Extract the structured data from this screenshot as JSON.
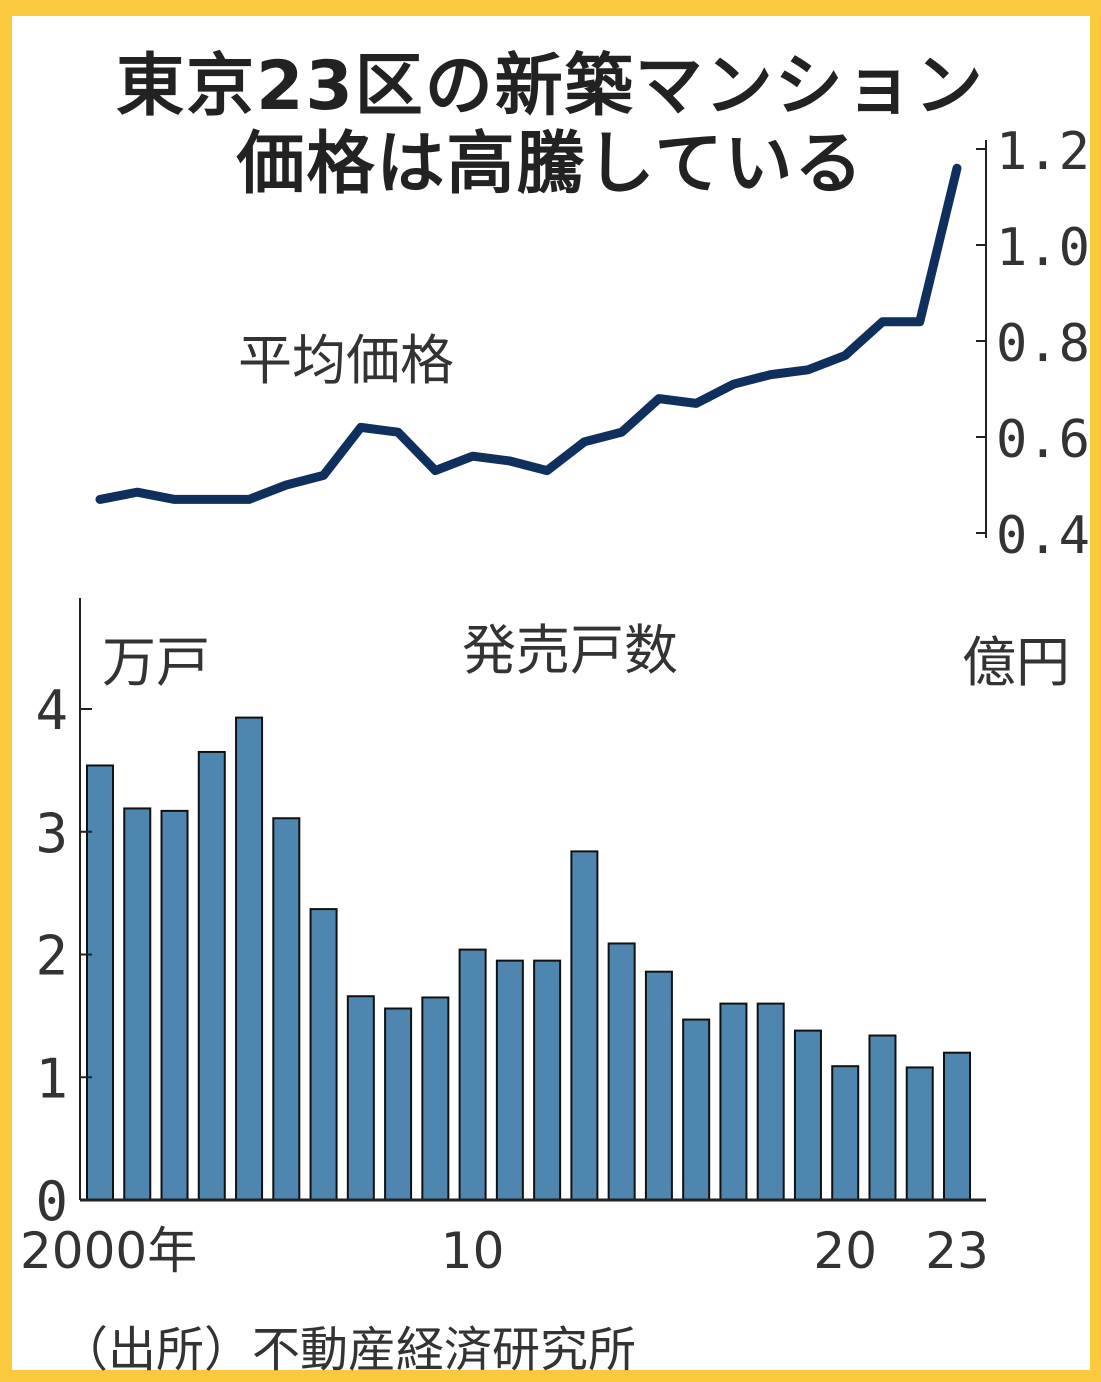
{
  "title_line1": "東京23区の新築マンション",
  "title_line2": "価格は高騰している",
  "source": "（出所）不動産経済研究所",
  "colors": {
    "border": "#fbc93d",
    "bar": "#4f86b0",
    "line": "#0f2f5c",
    "axis": "#222222"
  },
  "chart_data": [
    {
      "type": "line",
      "series_label": "平均価格",
      "unit": "億円",
      "x": [
        2000,
        2001,
        2002,
        2003,
        2004,
        2005,
        2006,
        2007,
        2008,
        2009,
        2010,
        2011,
        2012,
        2013,
        2014,
        2015,
        2016,
        2017,
        2018,
        2019,
        2020,
        2021,
        2022,
        2023
      ],
      "values": [
        0.47,
        0.485,
        0.47,
        0.47,
        0.47,
        0.5,
        0.52,
        0.62,
        0.61,
        0.53,
        0.56,
        0.55,
        0.53,
        0.59,
        0.61,
        0.68,
        0.67,
        0.71,
        0.73,
        0.74,
        0.77,
        0.84,
        0.84,
        1.16
      ],
      "ylim": [
        0.4,
        1.2
      ],
      "yticks": [
        "0.4",
        "0.6",
        "0.8",
        "1.0",
        "1.2"
      ],
      "y_axis_side": "right"
    },
    {
      "type": "bar",
      "series_label": "発売戸数",
      "unit": "万戸",
      "x": [
        2000,
        2001,
        2002,
        2003,
        2004,
        2005,
        2006,
        2007,
        2008,
        2009,
        2010,
        2011,
        2012,
        2013,
        2014,
        2015,
        2016,
        2017,
        2018,
        2019,
        2020,
        2021,
        2022,
        2023
      ],
      "values": [
        3.54,
        3.19,
        3.17,
        3.65,
        3.93,
        3.11,
        2.37,
        1.66,
        1.56,
        1.65,
        2.04,
        1.95,
        1.95,
        2.84,
        2.09,
        1.86,
        1.47,
        1.6,
        1.6,
        1.38,
        1.09,
        1.34,
        1.08,
        1.2
      ],
      "ylim": [
        0,
        4.6
      ],
      "yticks": [
        "0",
        "1",
        "2",
        "3",
        "4"
      ],
      "xtick_labels": [
        {
          "year": 2000,
          "label": "2000年"
        },
        {
          "year": 2010,
          "label": "10"
        },
        {
          "year": 2020,
          "label": "20"
        },
        {
          "year": 2023,
          "label": "23"
        }
      ],
      "y_axis_side": "left"
    }
  ]
}
